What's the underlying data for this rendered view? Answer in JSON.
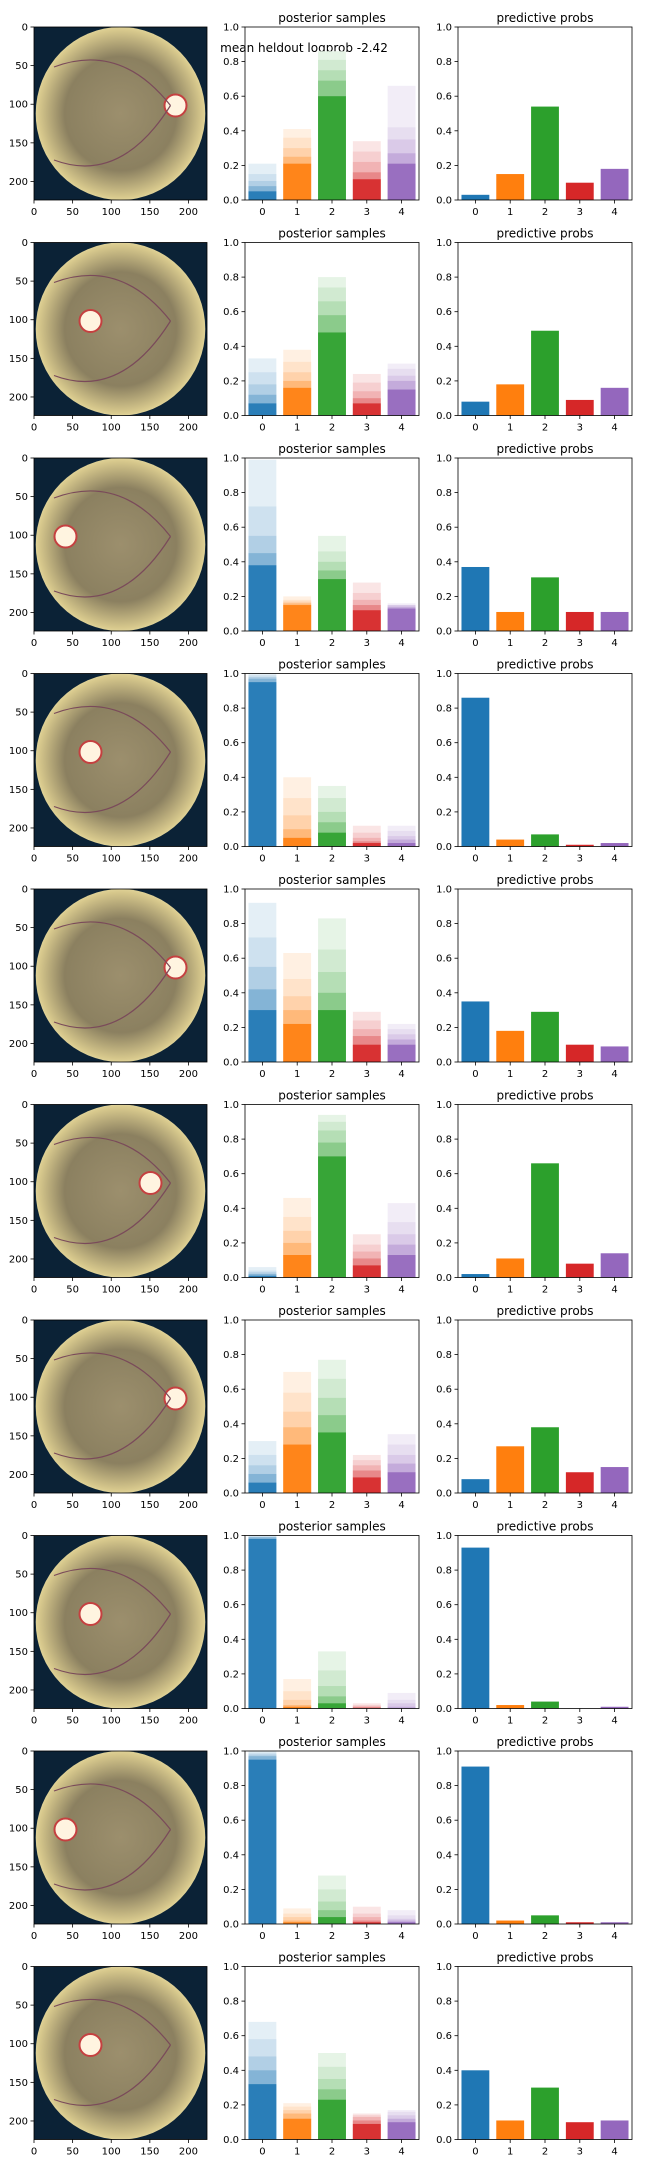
{
  "suptitle": "mean heldout logprob -2.42",
  "colors": [
    "#1f77b4",
    "#ff7f0e",
    "#2ca02c",
    "#d62728",
    "#9467bd"
  ],
  "image_ticks": {
    "x": [
      "0",
      "50",
      "100",
      "150",
      "200"
    ],
    "y": [
      "0",
      "50",
      "100",
      "150",
      "200"
    ]
  },
  "chart_data": [
    {
      "row": 1,
      "type": "image",
      "description_icon": "retina-fundus-image",
      "xlim": [
        0,
        224
      ],
      "ylim": [
        224,
        0
      ]
    },
    {
      "row": 1,
      "type": "bar",
      "title": "posterior samples",
      "categories": [
        "0",
        "1",
        "2",
        "3",
        "4"
      ],
      "ylim": [
        0,
        1.0
      ],
      "yticks": [
        "0.0",
        "0.2",
        "0.4",
        "0.6",
        "0.8",
        "1.0"
      ],
      "series": [
        {
          "values": [
            0.21,
            0.41,
            0.86,
            0.34,
            0.66
          ]
        },
        {
          "values": [
            0.15,
            0.36,
            0.81,
            0.28,
            0.42
          ]
        },
        {
          "values": [
            0.11,
            0.3,
            0.75,
            0.22,
            0.35
          ]
        },
        {
          "values": [
            0.08,
            0.25,
            0.69,
            0.16,
            0.27
          ]
        },
        {
          "values": [
            0.05,
            0.21,
            0.6,
            0.12,
            0.21
          ]
        }
      ]
    },
    {
      "row": 1,
      "type": "bar",
      "title": "predictive probs",
      "categories": [
        "0",
        "1",
        "2",
        "3",
        "4"
      ],
      "ylim": [
        0,
        1.0
      ],
      "yticks": [
        "0.0",
        "0.2",
        "0.4",
        "0.6",
        "0.8",
        "1.0"
      ],
      "values": [
        0.03,
        0.15,
        0.54,
        0.1,
        0.18
      ]
    },
    {
      "row": 2,
      "type": "image",
      "description_icon": "retina-fundus-image",
      "xlim": [
        0,
        224
      ],
      "ylim": [
        224,
        0
      ]
    },
    {
      "row": 2,
      "type": "bar",
      "title": "posterior samples",
      "categories": [
        "0",
        "1",
        "2",
        "3",
        "4"
      ],
      "ylim": [
        0,
        1.0
      ],
      "yticks": [
        "0.0",
        "0.2",
        "0.4",
        "0.6",
        "0.8",
        "1.0"
      ],
      "series": [
        {
          "values": [
            0.33,
            0.38,
            0.8,
            0.24,
            0.3
          ]
        },
        {
          "values": [
            0.25,
            0.31,
            0.74,
            0.19,
            0.27
          ]
        },
        {
          "values": [
            0.18,
            0.25,
            0.66,
            0.14,
            0.23
          ]
        },
        {
          "values": [
            0.12,
            0.2,
            0.58,
            0.1,
            0.2
          ]
        },
        {
          "values": [
            0.07,
            0.16,
            0.48,
            0.07,
            0.15
          ]
        }
      ]
    },
    {
      "row": 2,
      "type": "bar",
      "title": "predictive probs",
      "categories": [
        "0",
        "1",
        "2",
        "3",
        "4"
      ],
      "ylim": [
        0,
        1.0
      ],
      "yticks": [
        "0.0",
        "0.2",
        "0.4",
        "0.6",
        "0.8",
        "1.0"
      ],
      "values": [
        0.08,
        0.18,
        0.49,
        0.09,
        0.16
      ]
    },
    {
      "row": 3,
      "type": "image",
      "description_icon": "retina-fundus-image",
      "xlim": [
        0,
        224
      ],
      "ylim": [
        224,
        0
      ]
    },
    {
      "row": 3,
      "type": "bar",
      "title": "posterior samples",
      "categories": [
        "0",
        "1",
        "2",
        "3",
        "4"
      ],
      "ylim": [
        0,
        1.0
      ],
      "yticks": [
        "0.0",
        "0.2",
        "0.4",
        "0.6",
        "0.8",
        "1.0"
      ],
      "series": [
        {
          "values": [
            0.99,
            0.2,
            0.55,
            0.28,
            0.16
          ]
        },
        {
          "values": [
            0.72,
            0.18,
            0.46,
            0.22,
            0.15
          ]
        },
        {
          "values": [
            0.55,
            0.17,
            0.4,
            0.18,
            0.15
          ]
        },
        {
          "values": [
            0.45,
            0.16,
            0.35,
            0.15,
            0.14
          ]
        },
        {
          "values": [
            0.38,
            0.15,
            0.3,
            0.12,
            0.13
          ]
        }
      ]
    },
    {
      "row": 3,
      "type": "bar",
      "title": "predictive probs",
      "categories": [
        "0",
        "1",
        "2",
        "3",
        "4"
      ],
      "ylim": [
        0,
        1.0
      ],
      "yticks": [
        "0.0",
        "0.2",
        "0.4",
        "0.6",
        "0.8",
        "1.0"
      ],
      "values": [
        0.37,
        0.11,
        0.31,
        0.11,
        0.11
      ]
    },
    {
      "row": 4,
      "type": "image",
      "description_icon": "retina-fundus-image",
      "xlim": [
        0,
        224
      ],
      "ylim": [
        224,
        0
      ]
    },
    {
      "row": 4,
      "type": "bar",
      "title": "posterior samples",
      "categories": [
        "0",
        "1",
        "2",
        "3",
        "4"
      ],
      "ylim": [
        0,
        1.0
      ],
      "yticks": [
        "0.0",
        "0.2",
        "0.4",
        "0.6",
        "0.8",
        "1.0"
      ],
      "series": [
        {
          "values": [
            1.0,
            0.4,
            0.35,
            0.12,
            0.12
          ]
        },
        {
          "values": [
            0.99,
            0.28,
            0.28,
            0.08,
            0.09
          ]
        },
        {
          "values": [
            0.98,
            0.18,
            0.2,
            0.05,
            0.06
          ]
        },
        {
          "values": [
            0.97,
            0.1,
            0.14,
            0.03,
            0.04
          ]
        },
        {
          "values": [
            0.95,
            0.05,
            0.08,
            0.02,
            0.02
          ]
        }
      ]
    },
    {
      "row": 4,
      "type": "bar",
      "title": "predictive probs",
      "categories": [
        "0",
        "1",
        "2",
        "3",
        "4"
      ],
      "ylim": [
        0,
        1.0
      ],
      "yticks": [
        "0.0",
        "0.2",
        "0.4",
        "0.6",
        "0.8",
        "1.0"
      ],
      "values": [
        0.86,
        0.04,
        0.07,
        0.01,
        0.02
      ]
    },
    {
      "row": 5,
      "type": "image",
      "description_icon": "retina-fundus-image",
      "xlim": [
        0,
        224
      ],
      "ylim": [
        224,
        0
      ]
    },
    {
      "row": 5,
      "type": "bar",
      "title": "posterior samples",
      "categories": [
        "0",
        "1",
        "2",
        "3",
        "4"
      ],
      "ylim": [
        0,
        1.0
      ],
      "yticks": [
        "0.0",
        "0.2",
        "0.4",
        "0.6",
        "0.8",
        "1.0"
      ],
      "series": [
        {
          "values": [
            0.92,
            0.63,
            0.83,
            0.29,
            0.22
          ]
        },
        {
          "values": [
            0.72,
            0.48,
            0.65,
            0.24,
            0.19
          ]
        },
        {
          "values": [
            0.55,
            0.38,
            0.52,
            0.19,
            0.16
          ]
        },
        {
          "values": [
            0.42,
            0.3,
            0.4,
            0.15,
            0.13
          ]
        },
        {
          "values": [
            0.3,
            0.22,
            0.3,
            0.1,
            0.1
          ]
        }
      ]
    },
    {
      "row": 5,
      "type": "bar",
      "title": "predictive probs",
      "categories": [
        "0",
        "1",
        "2",
        "3",
        "4"
      ],
      "ylim": [
        0,
        1.0
      ],
      "yticks": [
        "0.0",
        "0.2",
        "0.4",
        "0.6",
        "0.8",
        "1.0"
      ],
      "values": [
        0.35,
        0.18,
        0.29,
        0.1,
        0.09
      ]
    },
    {
      "row": 6,
      "type": "image",
      "description_icon": "retina-fundus-image",
      "xlim": [
        0,
        224
      ],
      "ylim": [
        224,
        0
      ]
    },
    {
      "row": 6,
      "type": "bar",
      "title": "posterior samples",
      "categories": [
        "0",
        "1",
        "2",
        "3",
        "4"
      ],
      "ylim": [
        0,
        1.0
      ],
      "yticks": [
        "0.0",
        "0.2",
        "0.4",
        "0.6",
        "0.8",
        "1.0"
      ],
      "series": [
        {
          "values": [
            0.06,
            0.46,
            0.94,
            0.25,
            0.43
          ]
        },
        {
          "values": [
            0.04,
            0.35,
            0.9,
            0.19,
            0.32
          ]
        },
        {
          "values": [
            0.03,
            0.27,
            0.85,
            0.15,
            0.25
          ]
        },
        {
          "values": [
            0.02,
            0.2,
            0.78,
            0.11,
            0.19
          ]
        },
        {
          "values": [
            0.01,
            0.13,
            0.7,
            0.07,
            0.13
          ]
        }
      ]
    },
    {
      "row": 6,
      "type": "bar",
      "title": "predictive probs",
      "categories": [
        "0",
        "1",
        "2",
        "3",
        "4"
      ],
      "ylim": [
        0,
        1.0
      ],
      "yticks": [
        "0.0",
        "0.2",
        "0.4",
        "0.6",
        "0.8",
        "1.0"
      ],
      "values": [
        0.02,
        0.11,
        0.66,
        0.08,
        0.14
      ]
    },
    {
      "row": 7,
      "type": "image",
      "description_icon": "retina-fundus-image",
      "xlim": [
        0,
        224
      ],
      "ylim": [
        224,
        0
      ]
    },
    {
      "row": 7,
      "type": "bar",
      "title": "posterior samples",
      "categories": [
        "0",
        "1",
        "2",
        "3",
        "4"
      ],
      "ylim": [
        0,
        1.0
      ],
      "yticks": [
        "0.0",
        "0.2",
        "0.4",
        "0.6",
        "0.8",
        "1.0"
      ],
      "series": [
        {
          "values": [
            0.3,
            0.7,
            0.77,
            0.22,
            0.34
          ]
        },
        {
          "values": [
            0.22,
            0.58,
            0.66,
            0.19,
            0.28
          ]
        },
        {
          "values": [
            0.16,
            0.47,
            0.55,
            0.16,
            0.22
          ]
        },
        {
          "values": [
            0.11,
            0.38,
            0.45,
            0.13,
            0.17
          ]
        },
        {
          "values": [
            0.06,
            0.28,
            0.35,
            0.09,
            0.12
          ]
        }
      ]
    },
    {
      "row": 7,
      "type": "bar",
      "title": "predictive probs",
      "categories": [
        "0",
        "1",
        "2",
        "3",
        "4"
      ],
      "ylim": [
        0,
        1.0
      ],
      "yticks": [
        "0.0",
        "0.2",
        "0.4",
        "0.6",
        "0.8",
        "1.0"
      ],
      "values": [
        0.08,
        0.27,
        0.38,
        0.12,
        0.15
      ]
    },
    {
      "row": 8,
      "type": "image",
      "description_icon": "retina-fundus-image",
      "xlim": [
        0,
        224
      ],
      "ylim": [
        224,
        0
      ]
    },
    {
      "row": 8,
      "type": "bar",
      "title": "posterior samples",
      "categories": [
        "0",
        "1",
        "2",
        "3",
        "4"
      ],
      "ylim": [
        0,
        1.0
      ],
      "yticks": [
        "0.0",
        "0.2",
        "0.4",
        "0.6",
        "0.8",
        "1.0"
      ],
      "series": [
        {
          "values": [
            1.0,
            0.17,
            0.33,
            0.03,
            0.09
          ]
        },
        {
          "values": [
            1.0,
            0.1,
            0.22,
            0.02,
            0.05
          ]
        },
        {
          "values": [
            0.99,
            0.05,
            0.13,
            0.01,
            0.03
          ]
        },
        {
          "values": [
            0.99,
            0.02,
            0.07,
            0.01,
            0.01
          ]
        },
        {
          "values": [
            0.98,
            0.01,
            0.03,
            0.0,
            0.0
          ]
        }
      ]
    },
    {
      "row": 8,
      "type": "bar",
      "title": "predictive probs",
      "categories": [
        "0",
        "1",
        "2",
        "3",
        "4"
      ],
      "ylim": [
        0,
        1.0
      ],
      "yticks": [
        "0.0",
        "0.2",
        "0.4",
        "0.6",
        "0.8",
        "1.0"
      ],
      "values": [
        0.93,
        0.02,
        0.04,
        0.0,
        0.01
      ]
    },
    {
      "row": 9,
      "type": "image",
      "description_icon": "retina-fundus-image",
      "xlim": [
        0,
        224
      ],
      "ylim": [
        224,
        0
      ]
    },
    {
      "row": 9,
      "type": "bar",
      "title": "posterior samples",
      "categories": [
        "0",
        "1",
        "2",
        "3",
        "4"
      ],
      "ylim": [
        0,
        1.0
      ],
      "yticks": [
        "0.0",
        "0.2",
        "0.4",
        "0.6",
        "0.8",
        "1.0"
      ],
      "series": [
        {
          "values": [
            1.0,
            0.09,
            0.28,
            0.1,
            0.08
          ]
        },
        {
          "values": [
            0.99,
            0.06,
            0.2,
            0.06,
            0.05
          ]
        },
        {
          "values": [
            0.98,
            0.04,
            0.13,
            0.04,
            0.03
          ]
        },
        {
          "values": [
            0.97,
            0.02,
            0.08,
            0.02,
            0.02
          ]
        },
        {
          "values": [
            0.95,
            0.01,
            0.04,
            0.01,
            0.01
          ]
        }
      ]
    },
    {
      "row": 9,
      "type": "bar",
      "title": "predictive probs",
      "categories": [
        "0",
        "1",
        "2",
        "3",
        "4"
      ],
      "ylim": [
        0,
        1.0
      ],
      "yticks": [
        "0.0",
        "0.2",
        "0.4",
        "0.6",
        "0.8",
        "1.0"
      ],
      "values": [
        0.91,
        0.02,
        0.05,
        0.01,
        0.01
      ]
    },
    {
      "row": 10,
      "type": "image",
      "description_icon": "retina-fundus-image",
      "xlim": [
        0,
        224
      ],
      "ylim": [
        224,
        0
      ]
    },
    {
      "row": 10,
      "type": "bar",
      "title": "posterior samples",
      "categories": [
        "0",
        "1",
        "2",
        "3",
        "4"
      ],
      "ylim": [
        0,
        1.0
      ],
      "yticks": [
        "0.0",
        "0.2",
        "0.4",
        "0.6",
        "0.8",
        "1.0"
      ],
      "series": [
        {
          "values": [
            0.68,
            0.21,
            0.5,
            0.15,
            0.17
          ]
        },
        {
          "values": [
            0.58,
            0.19,
            0.42,
            0.14,
            0.16
          ]
        },
        {
          "values": [
            0.48,
            0.17,
            0.35,
            0.13,
            0.14
          ]
        },
        {
          "values": [
            0.4,
            0.15,
            0.29,
            0.11,
            0.12
          ]
        },
        {
          "values": [
            0.32,
            0.12,
            0.23,
            0.09,
            0.1
          ]
        }
      ]
    },
    {
      "row": 10,
      "type": "bar",
      "title": "predictive probs",
      "categories": [
        "0",
        "1",
        "2",
        "3",
        "4"
      ],
      "ylim": [
        0,
        1.0
      ],
      "yticks": [
        "0.0",
        "0.2",
        "0.4",
        "0.6",
        "0.8",
        "1.0"
      ],
      "values": [
        0.4,
        0.11,
        0.3,
        0.1,
        0.11
      ]
    }
  ]
}
